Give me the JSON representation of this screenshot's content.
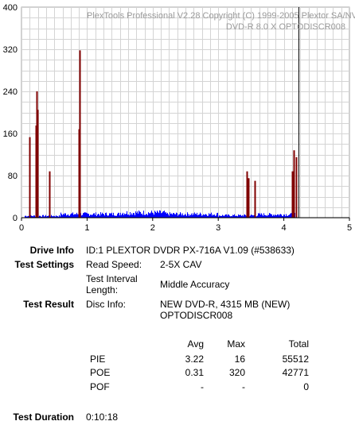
{
  "chart_data": {
    "type": "bar",
    "title": "PlexTools Professional V2.28 Copyright (C) 1999-2005 Plextor SA/NV",
    "subtitle": "DVD-R   8.0 X   OPTODISCR008",
    "xlim": [
      0,
      5
    ],
    "ylim": [
      0,
      400
    ],
    "x_ticks": [
      "0",
      "1",
      "2",
      "3",
      "4",
      "5"
    ],
    "y_ticks": [
      "0",
      "80",
      "160",
      "240",
      "320",
      "400"
    ],
    "grid": true,
    "pie_profile": {
      "color": "#0000ff",
      "x_range": [
        0.05,
        4.18
      ],
      "segments": [
        {
          "x": [
            0.05,
            0.6
          ],
          "level": 4
        },
        {
          "x": [
            0.6,
            1.5
          ],
          "level": 8
        },
        {
          "x": [
            1.5,
            2.2
          ],
          "level": 11
        },
        {
          "x": [
            2.2,
            3.0
          ],
          "level": 8
        },
        {
          "x": [
            3.0,
            3.6
          ],
          "level": 5
        },
        {
          "x": [
            3.6,
            4.18
          ],
          "level": 7
        }
      ]
    },
    "poe_spikes": {
      "color": "#800000",
      "points": [
        {
          "x": 0.12,
          "y": 153
        },
        {
          "x": 0.22,
          "y": 175
        },
        {
          "x": 0.23,
          "y": 240
        },
        {
          "x": 0.24,
          "y": 205
        },
        {
          "x": 0.43,
          "y": 88
        },
        {
          "x": 0.87,
          "y": 168
        },
        {
          "x": 0.88,
          "y": 318
        },
        {
          "x": 3.43,
          "y": 88
        },
        {
          "x": 3.46,
          "y": 75
        },
        {
          "x": 3.55,
          "y": 70
        },
        {
          "x": 4.13,
          "y": 88
        },
        {
          "x": 4.15,
          "y": 128
        },
        {
          "x": 4.19,
          "y": 115
        }
      ]
    },
    "end_marker": {
      "x": 4.22,
      "color": "#000000"
    }
  },
  "info": {
    "drive_info_label": "Drive Info",
    "drive_info_value": "ID:1 PLEXTOR DVDR PX-716A V1.09 (#538633)",
    "test_settings_label": "Test Settings",
    "read_speed_label": "Read Speed:",
    "read_speed_value": "2-5X CAV",
    "interval_label_1": "Test Interval",
    "interval_label_2": "Length:",
    "interval_value": "Middle Accuracy",
    "test_result_label": "Test Result",
    "disc_info_label": "Disc Info:",
    "disc_info_value_1": "NEW DVD-R, 4315 MB (NEW)",
    "disc_info_value_2": "OPTODISCR008",
    "test_duration_label": "Test Duration",
    "test_duration_value": "0:10:18"
  },
  "results": {
    "headers": {
      "avg": "Avg",
      "max": "Max",
      "total": "Total"
    },
    "rows": [
      {
        "name": "PIE",
        "avg": "3.22",
        "max": "16",
        "total": "55512"
      },
      {
        "name": "POE",
        "avg": "0.31",
        "max": "320",
        "total": "42771"
      },
      {
        "name": "POF",
        "avg": "-",
        "max": "-",
        "total": "0"
      }
    ]
  }
}
